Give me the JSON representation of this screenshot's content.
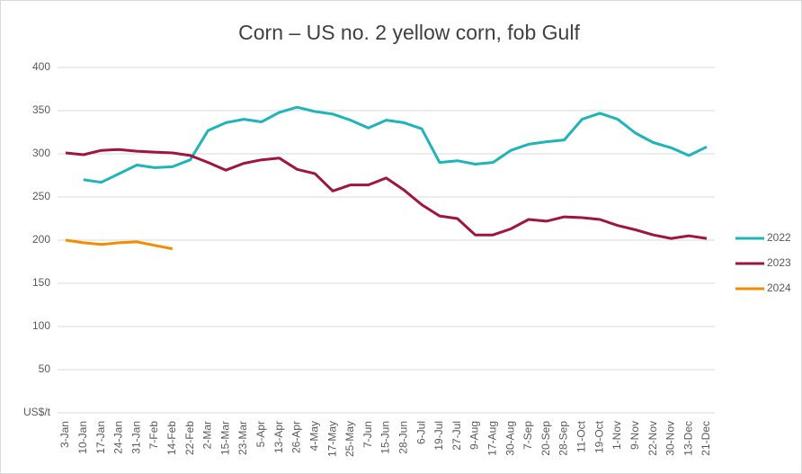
{
  "chart_data": {
    "type": "line",
    "title": "Corn – US no. 2 yellow corn, fob Gulf",
    "categories": [
      "3-Jan",
      "10-Jan",
      "17-Jan",
      "24-Jan",
      "31-Jan",
      "7-Feb",
      "14-Feb",
      "22-Feb",
      "2-Mar",
      "15-Mar",
      "23-Mar",
      "5-Apr",
      "13-Apr",
      "26-Apr",
      "4-May",
      "17-May",
      "25-May",
      "7-Jun",
      "15-Jun",
      "28-Jun",
      "6-Jul",
      "19-Jul",
      "27-Jul",
      "9-Aug",
      "17-Aug",
      "30-Aug",
      "7-Sep",
      "20-Sep",
      "28-Sep",
      "11-Oct",
      "19-Oct",
      "1-Nov",
      "9-Nov",
      "22-Nov",
      "30-Nov",
      "13-Dec",
      "21-Dec"
    ],
    "series": [
      {
        "name": "2022",
        "color": "#1fb5b8",
        "values": [
          null,
          270,
          267,
          277,
          287,
          284,
          285,
          293,
          327,
          336,
          340,
          337,
          348,
          354,
          349,
          346,
          339,
          330,
          339,
          336,
          329,
          290,
          292,
          288,
          290,
          304,
          311,
          314,
          316,
          340,
          347,
          340,
          324,
          313,
          307,
          298,
          308
        ]
      },
      {
        "name": "2023",
        "color": "#a0153e",
        "values": [
          301,
          299,
          304,
          305,
          303,
          302,
          301,
          298,
          290,
          281,
          289,
          293,
          295,
          282,
          277,
          257,
          264,
          264,
          272,
          258,
          241,
          228,
          225,
          206,
          206,
          213,
          224,
          222,
          227,
          226,
          224,
          217,
          212,
          206,
          202,
          205,
          202
        ]
      },
      {
        "name": "2024",
        "color": "#f28c00",
        "values": [
          200,
          197,
          195,
          197,
          198,
          194,
          190,
          null,
          null,
          null,
          null,
          null,
          null,
          null,
          null,
          null,
          null,
          null,
          null,
          null,
          null,
          null,
          null,
          null,
          null,
          null,
          null,
          null,
          null,
          null,
          null,
          null,
          null,
          null,
          null,
          null,
          null
        ]
      }
    ],
    "ylim": [
      0,
      400
    ],
    "yticks": [
      {
        "value": 0,
        "label": "US$/t"
      },
      50,
      100,
      150,
      200,
      250,
      300,
      350,
      400
    ],
    "grid": true,
    "legend": "right"
  }
}
